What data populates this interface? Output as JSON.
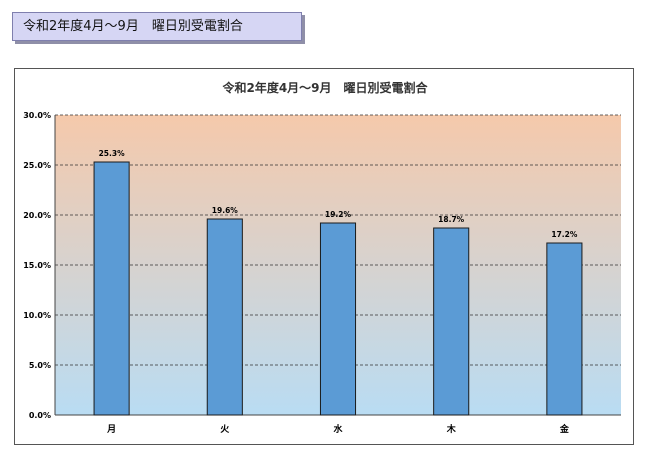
{
  "page_title": "令和2年度4月～9月　曜日別受電割合",
  "colors": {
    "bar_fill": "#5b9bd5",
    "bar_stroke": "#1a1a1a",
    "plot_top": "#f5c9ab",
    "plot_bottom": "#b9dcf3",
    "gridline": "#333333",
    "page_label_bg": "#d6d6f4"
  },
  "chart_data": {
    "type": "bar",
    "title": "令和2年度4月～9月　曜日別受電割合",
    "categories": [
      "月",
      "火",
      "水",
      "木",
      "金"
    ],
    "values": [
      25.3,
      19.6,
      19.2,
      18.7,
      17.2
    ],
    "data_labels": [
      "25.3%",
      "19.6%",
      "19.2%",
      "18.7%",
      "17.2%"
    ],
    "ylim": [
      0,
      30
    ],
    "yticks": [
      0,
      5,
      10,
      15,
      20,
      25,
      30
    ],
    "ytick_labels": [
      "0.0%",
      "5.0%",
      "10.0%",
      "15.0%",
      "20.0%",
      "25.0%",
      "30.0%"
    ],
    "grid": true,
    "legend": "none"
  }
}
